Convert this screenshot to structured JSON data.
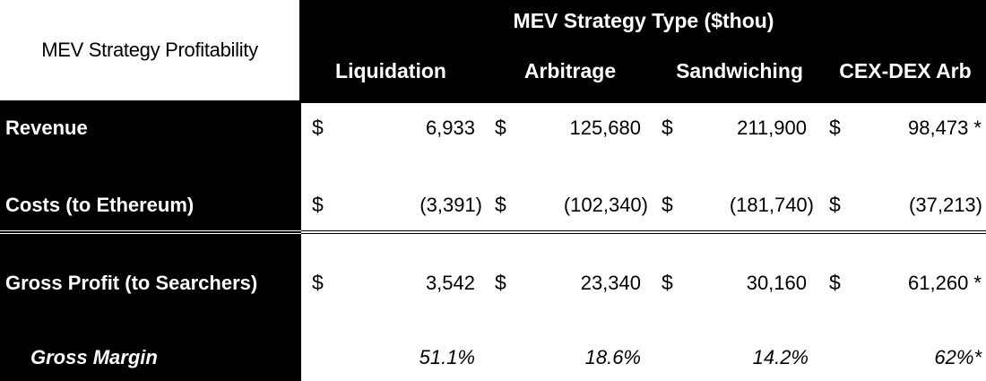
{
  "corner_label": "MEV Strategy Profitability",
  "header": {
    "title": "MEV Strategy Type ($thou)",
    "columns": [
      "Liquidation",
      "Arbitrage",
      "Sandwiching",
      "CEX-DEX Arb"
    ]
  },
  "rows": [
    {
      "label": "Revenue",
      "currency": "$",
      "values": [
        "6,933",
        "125,680",
        "211,900",
        "98,473 *"
      ]
    },
    {
      "label": "Costs (to Ethereum)",
      "currency": "$",
      "values": [
        "(3,391)",
        "(102,340)",
        "(181,740)",
        "(37,213)"
      ]
    },
    {
      "label": "Gross Profit (to Searchers)",
      "currency": "$",
      "values": [
        "3,542",
        "23,340",
        "30,160",
        "61,260 *"
      ]
    },
    {
      "label": "Gross Margin",
      "values": [
        "51.1%",
        "18.6%",
        "14.2%",
        "62%*"
      ]
    }
  ],
  "colors": {
    "background": "#000000",
    "table_body": "#ffffff",
    "text_light": "#ffffff",
    "text_dark": "#000000"
  }
}
